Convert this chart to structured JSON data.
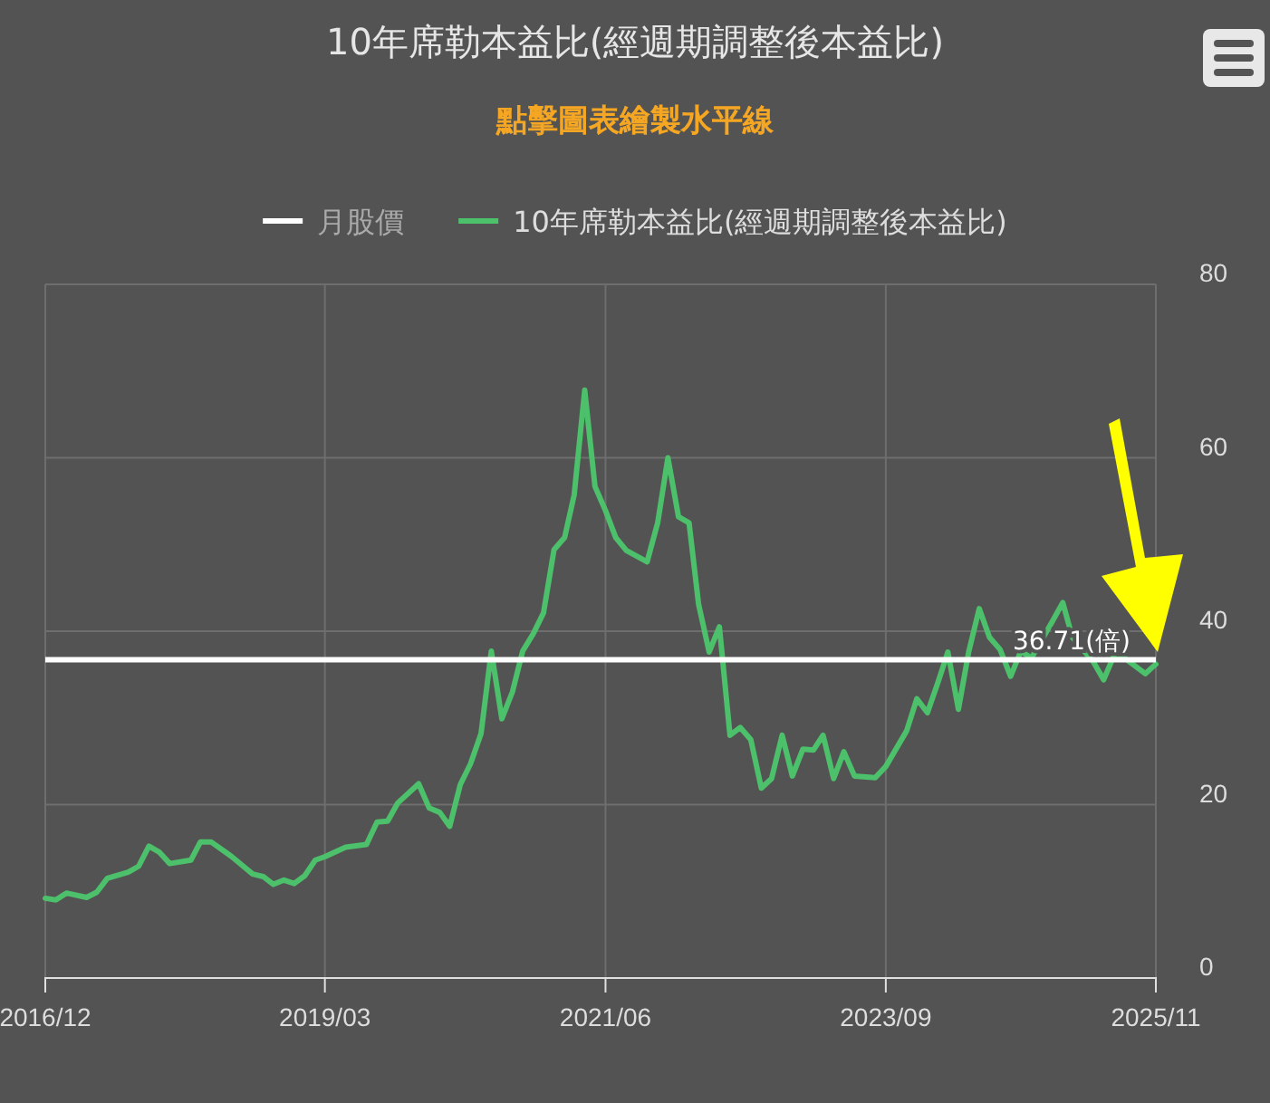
{
  "chart_data": {
    "type": "line",
    "title": "10年席勒本益比(經週期調整後本益比)",
    "subtitle": "點擊圖表繪製水平線",
    "xlim": [
      "2016-12",
      "2025-11"
    ],
    "xticks": [
      {
        "value": "2016-12",
        "label": "2016/12"
      },
      {
        "value": "2019-03",
        "label": "2019/03"
      },
      {
        "value": "2021-06",
        "label": "2021/06"
      },
      {
        "value": "2023-09",
        "label": "2023/09"
      },
      {
        "value": "2025-11",
        "label": "2025/11"
      }
    ],
    "ylim": [
      0,
      80
    ],
    "yticks": [
      0,
      20,
      40,
      60,
      80
    ],
    "grid": true,
    "legend": "top",
    "marker": "none",
    "ref_lines": [
      {
        "axis": "y",
        "value": 36.71,
        "label": "36.71(倍)",
        "color": "#ffffff"
      }
    ],
    "series": [
      {
        "name": "月股價",
        "color": "#ffffff"
      },
      {
        "name": "10年席勒本益比(經週期調整後本益比)",
        "color": "#4cc06a",
        "x": [
          "2016-12",
          "2017-01",
          "2017-02",
          "2017-04",
          "2017-05",
          "2017-06",
          "2017-08",
          "2017-09",
          "2017-10",
          "2017-11",
          "2017-12",
          "2018-02",
          "2018-03",
          "2018-04",
          "2018-06",
          "2018-08",
          "2018-09",
          "2018-10",
          "2018-11",
          "2018-12",
          "2019-01",
          "2019-02",
          "2019-03",
          "2019-05",
          "2019-07",
          "2019-08",
          "2019-09",
          "2019-10",
          "2019-12",
          "2020-01",
          "2020-02",
          "2020-03",
          "2020-04",
          "2020-05",
          "2020-06",
          "2020-07",
          "2020-08",
          "2020-09",
          "2020-10",
          "2020-11",
          "2020-12",
          "2021-01",
          "2021-02",
          "2021-03",
          "2021-04",
          "2021-05",
          "2021-06",
          "2021-07",
          "2021-08",
          "2021-10",
          "2021-11",
          "2021-12",
          "2022-01",
          "2022-02",
          "2022-03",
          "2022-04",
          "2022-05",
          "2022-06",
          "2022-07",
          "2022-08",
          "2022-09",
          "2022-10",
          "2022-11",
          "2022-12",
          "2023-01",
          "2023-02",
          "2023-03",
          "2023-04",
          "2023-05",
          "2023-06",
          "2023-08",
          "2023-09",
          "2023-11",
          "2023-12",
          "2024-01",
          "2024-02",
          "2024-03",
          "2024-04",
          "2024-05",
          "2024-06",
          "2024-07",
          "2024-08",
          "2024-09",
          "2024-10",
          "2024-11",
          "2025-01",
          "2025-02",
          "2025-03",
          "2025-05",
          "2025-06",
          "2025-07",
          "2025-08",
          "2025-10",
          "2025-11"
        ],
        "values": [
          9.2,
          9.0,
          9.8,
          9.3,
          9.9,
          11.5,
          12.2,
          12.9,
          15.2,
          14.5,
          13.2,
          13.6,
          15.7,
          15.7,
          14.0,
          12.0,
          11.7,
          10.8,
          11.3,
          10.9,
          11.8,
          13.6,
          14.0,
          15.1,
          15.4,
          18.0,
          18.1,
          20.2,
          22.4,
          19.6,
          19.1,
          17.5,
          22.3,
          24.7,
          28.2,
          37.7,
          29.9,
          33.0,
          37.7,
          39.7,
          42.1,
          49.4,
          50.8,
          55.7,
          67.8,
          56.7,
          53.9,
          50.8,
          49.3,
          48.0,
          52.5,
          60.0,
          53.2,
          52.5,
          43.1,
          37.6,
          40.5,
          28.0,
          28.9,
          27.5,
          21.9,
          23.0,
          28.0,
          23.3,
          26.4,
          26.3,
          28.0,
          23.0,
          26.1,
          23.3,
          23.1,
          24.4,
          28.5,
          32.2,
          30.6,
          34.1,
          37.6,
          31.0,
          37.6,
          42.6,
          39.3,
          37.9,
          34.8,
          37.7,
          36.9,
          41.1,
          43.3,
          39.3,
          36.5,
          34.4,
          37.2,
          36.9,
          35.1,
          36.2
        ]
      }
    ]
  }
}
